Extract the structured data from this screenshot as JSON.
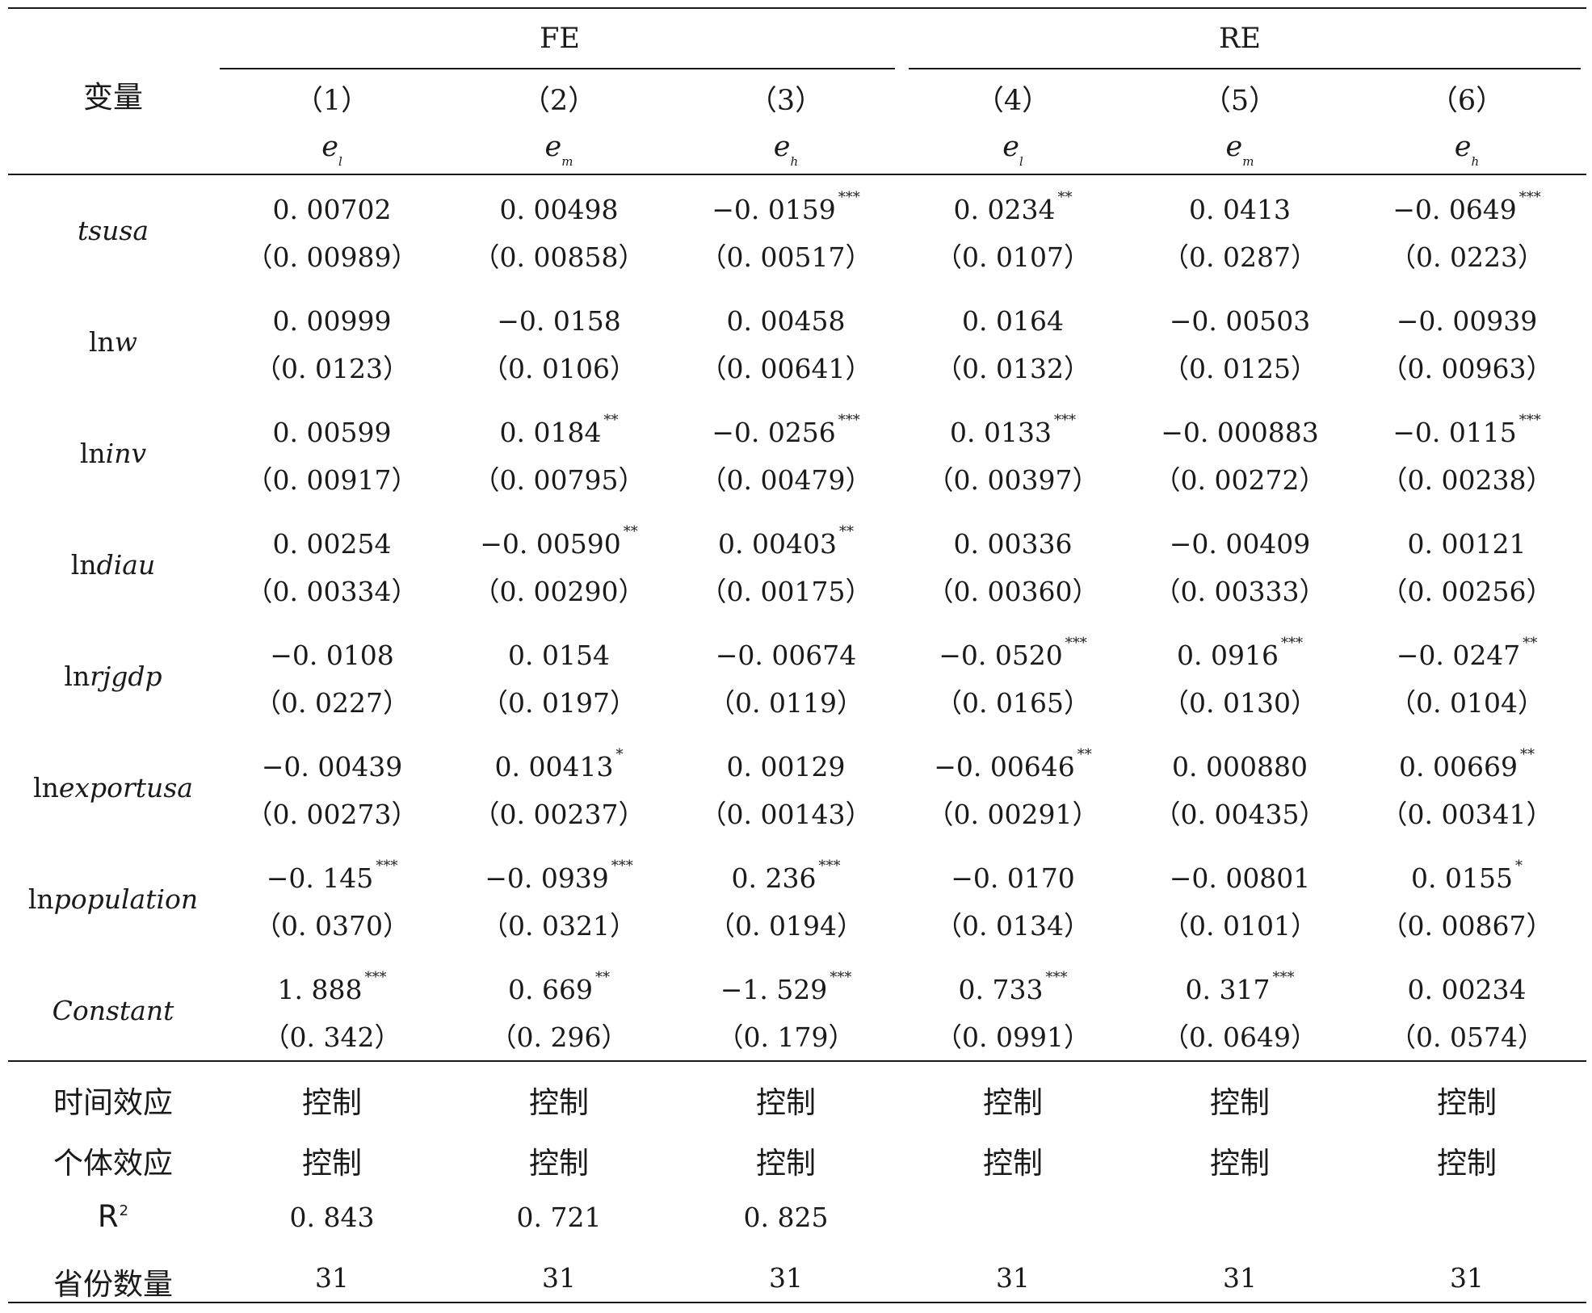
{
  "header": {
    "var_label": "变量",
    "groups": [
      {
        "label": "FE"
      },
      {
        "label": "RE"
      }
    ],
    "cols": [
      {
        "num": "（1）",
        "base": "e",
        "sub": "l"
      },
      {
        "num": "（2）",
        "base": "e",
        "sub": "m"
      },
      {
        "num": "（3）",
        "base": "e",
        "sub": "h"
      },
      {
        "num": "（4）",
        "base": "e",
        "sub": "l"
      },
      {
        "num": "（5）",
        "base": "e",
        "sub": "m"
      },
      {
        "num": "（6）",
        "base": "e",
        "sub": "h"
      }
    ]
  },
  "rows": [
    {
      "var": {
        "prefix": "",
        "italic": "tsusa"
      },
      "cells": [
        {
          "coef": "0. 00702",
          "sig": "",
          "se": "（0. 00989）"
        },
        {
          "coef": "0. 00498",
          "sig": "",
          "se": "（0. 00858）"
        },
        {
          "coef": "−0. 0159",
          "sig": "***",
          "se": "（0. 00517）"
        },
        {
          "coef": "0. 0234",
          "sig": "**",
          "se": "（0. 0107）"
        },
        {
          "coef": "0. 0413",
          "sig": "",
          "se": "（0. 0287）"
        },
        {
          "coef": "−0. 0649",
          "sig": "***",
          "se": "（0. 0223）"
        }
      ]
    },
    {
      "var": {
        "prefix": "ln",
        "italic": "w"
      },
      "cells": [
        {
          "coef": "0. 00999",
          "sig": "",
          "se": "（0. 0123）"
        },
        {
          "coef": "−0. 0158",
          "sig": "",
          "se": "（0. 0106）"
        },
        {
          "coef": "0. 00458",
          "sig": "",
          "se": "（0. 00641）"
        },
        {
          "coef": "0. 0164",
          "sig": "",
          "se": "（0. 0132）"
        },
        {
          "coef": "−0. 00503",
          "sig": "",
          "se": "（0. 0125）"
        },
        {
          "coef": "−0. 00939",
          "sig": "",
          "se": "（0. 00963）"
        }
      ]
    },
    {
      "var": {
        "prefix": "ln",
        "italic": "inv"
      },
      "cells": [
        {
          "coef": "0. 00599",
          "sig": "",
          "se": "（0. 00917）"
        },
        {
          "coef": "0. 0184",
          "sig": "**",
          "se": "（0. 00795）"
        },
        {
          "coef": "−0. 0256",
          "sig": "***",
          "se": "（0. 00479）"
        },
        {
          "coef": "0. 0133",
          "sig": "***",
          "se": "（0. 00397）"
        },
        {
          "coef": "−0. 000883",
          "sig": "",
          "se": "（0. 00272）"
        },
        {
          "coef": "−0. 0115",
          "sig": "***",
          "se": "（0. 00238）"
        }
      ]
    },
    {
      "var": {
        "prefix": "ln",
        "italic": "diau"
      },
      "cells": [
        {
          "coef": "0. 00254",
          "sig": "",
          "se": "（0. 00334）"
        },
        {
          "coef": "−0. 00590",
          "sig": "**",
          "se": "（0. 00290）"
        },
        {
          "coef": "0. 00403",
          "sig": "**",
          "se": "（0. 00175）"
        },
        {
          "coef": "0. 00336",
          "sig": "",
          "se": "（0. 00360）"
        },
        {
          "coef": "−0. 00409",
          "sig": "",
          "se": "（0. 00333）"
        },
        {
          "coef": "0. 00121",
          "sig": "",
          "se": "（0. 00256）"
        }
      ]
    },
    {
      "var": {
        "prefix": "ln",
        "italic": "rjgdp"
      },
      "cells": [
        {
          "coef": "−0. 0108",
          "sig": "",
          "se": "（0. 0227）"
        },
        {
          "coef": "0. 0154",
          "sig": "",
          "se": "（0. 0197）"
        },
        {
          "coef": "−0. 00674",
          "sig": "",
          "se": "（0. 0119）"
        },
        {
          "coef": "−0. 0520",
          "sig": "***",
          "se": "（0. 0165）"
        },
        {
          "coef": "0. 0916",
          "sig": "***",
          "se": "（0. 0130）"
        },
        {
          "coef": "−0. 0247",
          "sig": "**",
          "se": "（0. 0104）"
        }
      ]
    },
    {
      "var": {
        "prefix": "ln",
        "italic": "exportusa"
      },
      "cells": [
        {
          "coef": "−0. 00439",
          "sig": "",
          "se": "（0. 00273）"
        },
        {
          "coef": "0. 00413",
          "sig": "*",
          "se": "（0. 00237）"
        },
        {
          "coef": "0. 00129",
          "sig": "",
          "se": "（0. 00143）"
        },
        {
          "coef": "−0. 00646",
          "sig": "**",
          "se": "（0. 00291）"
        },
        {
          "coef": "0. 000880",
          "sig": "",
          "se": "（0. 00435）"
        },
        {
          "coef": "0. 00669",
          "sig": "**",
          "se": "（0. 00341）"
        }
      ]
    },
    {
      "var": {
        "prefix": "ln",
        "italic": "population"
      },
      "cells": [
        {
          "coef": "−0. 145",
          "sig": "***",
          "se": "（0. 0370）"
        },
        {
          "coef": "−0. 0939",
          "sig": "***",
          "se": "（0. 0321）"
        },
        {
          "coef": "0. 236",
          "sig": "***",
          "se": "（0. 0194）"
        },
        {
          "coef": "−0. 0170",
          "sig": "",
          "se": "（0. 0134）"
        },
        {
          "coef": "−0. 00801",
          "sig": "",
          "se": "（0. 0101）"
        },
        {
          "coef": "0. 0155",
          "sig": "*",
          "se": "（0. 00867）"
        }
      ]
    },
    {
      "var": {
        "prefix": "",
        "italic": "Constant"
      },
      "cells": [
        {
          "coef": "1. 888",
          "sig": "***",
          "se": "（0. 342）"
        },
        {
          "coef": "0. 669",
          "sig": "**",
          "se": "（0. 296）"
        },
        {
          "coef": "−1. 529",
          "sig": "***",
          "se": "（0. 179）"
        },
        {
          "coef": "0. 733",
          "sig": "***",
          "se": "（0. 0991）"
        },
        {
          "coef": "0. 317",
          "sig": "***",
          "se": "（0. 0649）"
        },
        {
          "coef": "0. 00234",
          "sig": "",
          "se": "（0. 0574）"
        }
      ]
    }
  ],
  "footer": [
    {
      "label": "时间效应",
      "sup": "",
      "values": [
        "控制",
        "控制",
        "控制",
        "控制",
        "控制",
        "控制"
      ]
    },
    {
      "label": "个体效应",
      "sup": "",
      "values": [
        "控制",
        "控制",
        "控制",
        "控制",
        "控制",
        "控制"
      ]
    },
    {
      "label": "R",
      "sup": "2",
      "values": [
        "0. 843",
        "0. 721",
        "0. 825",
        "",
        "",
        ""
      ]
    },
    {
      "label": "省份数量",
      "sup": "",
      "values": [
        "31",
        "31",
        "31",
        "31",
        "31",
        "31"
      ]
    }
  ]
}
